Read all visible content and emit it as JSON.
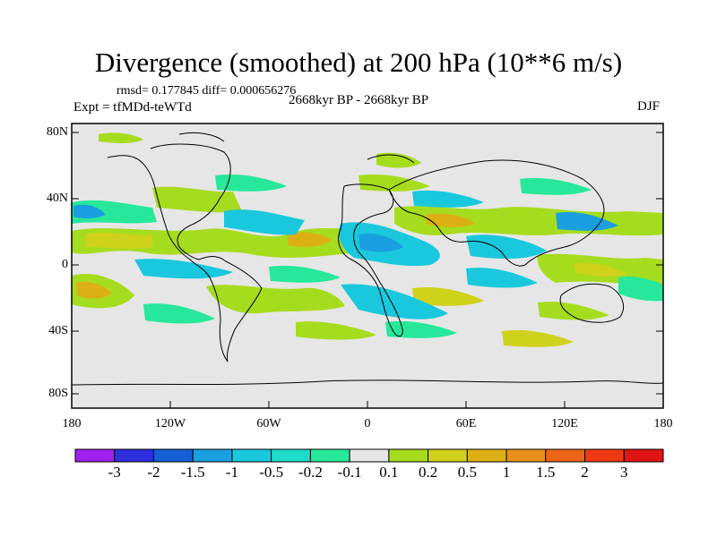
{
  "title": "Divergence (smoothed) at 200 hPa (10**6 m/s)",
  "stats_text": "rmsd= 0.177845 diff= 0.000656276",
  "experiment_text": "Expt = tfMDd-teWTd",
  "period_text": "2668kyr BP - 2668kyr BP",
  "season": "DJF",
  "lat_labels": [
    "80N",
    "40N",
    "0",
    "40S",
    "80S"
  ],
  "lon_labels": [
    "180",
    "120W",
    "60W",
    "0",
    "60E",
    "120E",
    "180"
  ],
  "colorbar_labels": [
    "-3",
    "-2",
    "-1.5",
    "-1",
    "-0.5",
    "-0.2",
    "-0.1",
    "0.1",
    "0.2",
    "0.5",
    "1",
    "1.5",
    "2",
    "3"
  ],
  "colorbar_colors": [
    "#a020f0",
    "#2f2fe0",
    "#1560d8",
    "#1a9fe0",
    "#19c8dc",
    "#1edcc8",
    "#27e89a",
    "#e6e6e6",
    "#a6dc1e",
    "#cfd21a",
    "#dcb014",
    "#e8901a",
    "#ec6418",
    "#ee3a14",
    "#e01414"
  ],
  "colors": {
    "background": "#e6e6e6",
    "coast": "#000000"
  }
}
